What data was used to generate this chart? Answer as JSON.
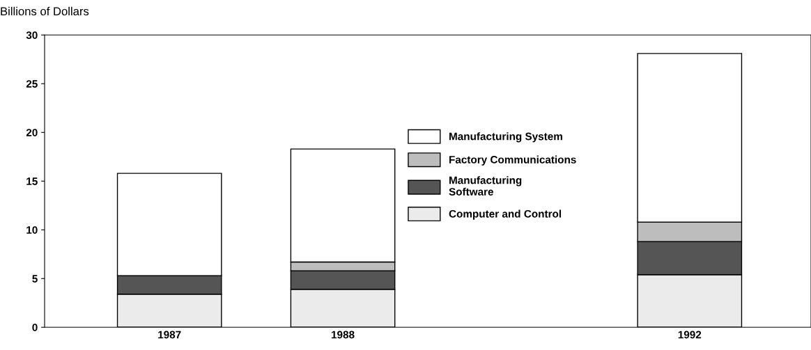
{
  "chart_data": {
    "type": "bar",
    "ylabel": "Billions of Dollars",
    "stacked": true,
    "categories": [
      "1987",
      "1988",
      null,
      "1992"
    ],
    "series": [
      {
        "name": "Computer and Control",
        "color": "#ebebeb",
        "values": [
          3.4,
          3.9,
          null,
          5.4
        ]
      },
      {
        "name": "Manufacturing\nSoftware",
        "color": "#555555",
        "values": [
          1.9,
          1.9,
          null,
          3.4
        ]
      },
      {
        "name": "Factory Communications",
        "color": "#bdbdbd",
        "values": [
          0,
          0.9,
          null,
          2.0
        ]
      },
      {
        "name": "Manufacturing System",
        "color": "#ffffff",
        "values": [
          10.5,
          11.6,
          null,
          17.3
        ]
      }
    ],
    "ylim": [
      0,
      30
    ],
    "yticks": [
      0,
      5,
      10,
      15,
      20,
      25,
      30
    ],
    "grid": false,
    "legend": "center"
  }
}
